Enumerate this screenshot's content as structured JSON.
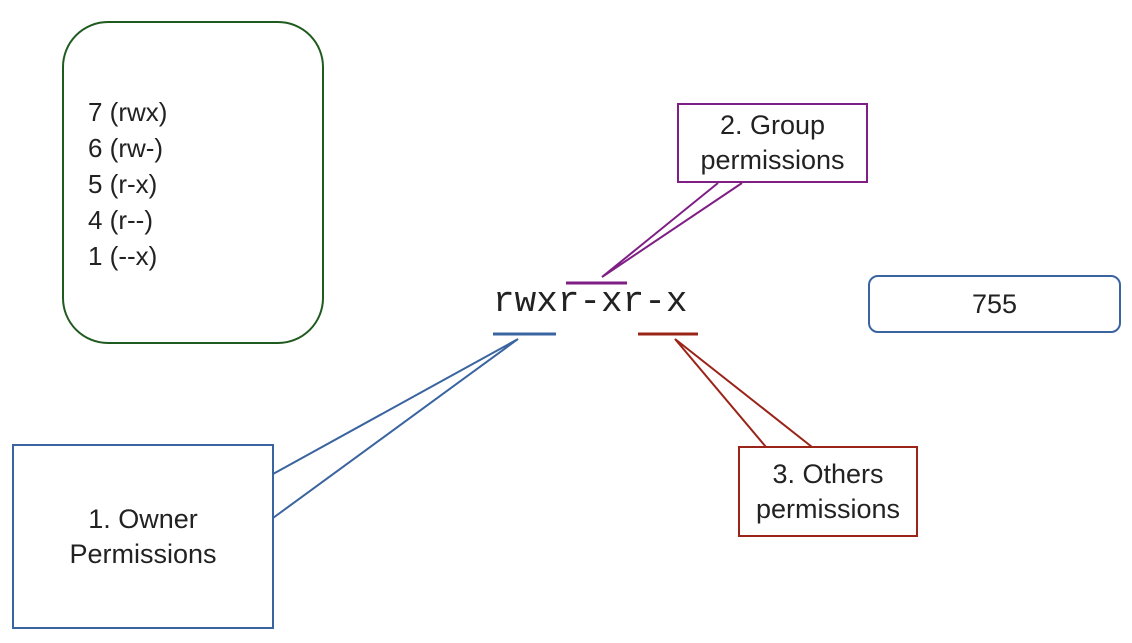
{
  "legend": {
    "items": [
      "7 (rwx)",
      "6 (rw-)",
      "5 (r-x)",
      "4 (r--)",
      "1 (--x)"
    ]
  },
  "permission_string": {
    "owner": "rwx",
    "group": "r-x",
    "others": "r-x"
  },
  "octal": {
    "value": "755"
  },
  "callouts": {
    "owner": {
      "line1": "1. Owner",
      "line2": "Permissions"
    },
    "group": {
      "line1": "2. Group",
      "line2": "permissions"
    },
    "others": {
      "line1": "3. Others",
      "line2": "permissions"
    }
  },
  "colors": {
    "owner": "#3a64a0",
    "group": "#7f1f86",
    "others": "#9a2418",
    "legend_border": "#1f5a1f",
    "octal_border": "#3a64a0"
  }
}
